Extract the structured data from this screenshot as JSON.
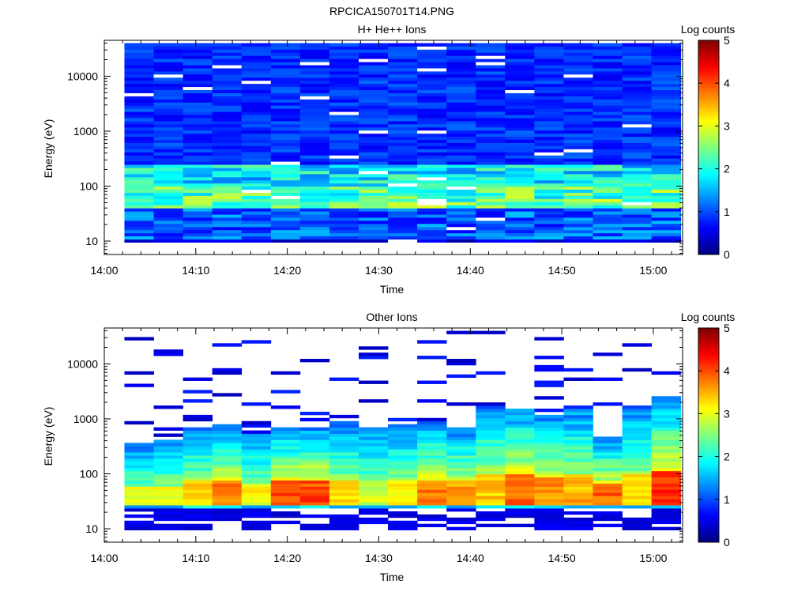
{
  "figure_title": "RPCICA150701T14.PNG",
  "colormap": [
    "#00007f",
    "#0000ff",
    "#007fff",
    "#00ffff",
    "#7fff7f",
    "#ffff00",
    "#ff7f00",
    "#ff0000",
    "#7f0000"
  ],
  "chart_data": [
    {
      "type": "heatmap",
      "title": "H+ He++ Ions",
      "xlabel": "Time",
      "ylabel": "Energy (eV)",
      "x_ticks": [
        "14:00",
        "14:10",
        "14:20",
        "14:30",
        "14:40",
        "14:50",
        "15:00"
      ],
      "x_tick_minutes": [
        0,
        10,
        20,
        30,
        40,
        50,
        60
      ],
      "xlim_minutes": [
        0,
        63.2
      ],
      "y_scale": "log",
      "ylim": [
        5.7,
        45000
      ],
      "y_ticks": [
        10,
        100,
        1000,
        10000
      ],
      "colorbar": {
        "label": "Log counts",
        "ticks": [
          0,
          1,
          2,
          3,
          4,
          5
        ],
        "range": [
          0,
          5
        ]
      },
      "time_bins_minutes": [
        2.2,
        5.4,
        8.6,
        11.8,
        15.0,
        18.2,
        21.4,
        24.6,
        27.8,
        31.0,
        34.2,
        37.4,
        40.6,
        43.8,
        47.0,
        50.2,
        53.4,
        56.6,
        59.8,
        63.0
      ],
      "energy_range_ev": [
        9.5,
        40000
      ],
      "energy_channels": 64,
      "profile": "ion_background"
    },
    {
      "type": "heatmap",
      "title": "Other Ions",
      "xlabel": "Time",
      "ylabel": "Energy (eV)",
      "x_ticks": [
        "14:00",
        "14:10",
        "14:20",
        "14:30",
        "14:40",
        "14:50",
        "15:00"
      ],
      "x_tick_minutes": [
        0,
        10,
        20,
        30,
        40,
        50,
        60
      ],
      "xlim_minutes": [
        0,
        63.2
      ],
      "y_scale": "log",
      "ylim": [
        5.7,
        45000
      ],
      "y_ticks": [
        10,
        100,
        1000,
        10000
      ],
      "colorbar": {
        "label": "Log counts",
        "ticks": [
          0,
          1,
          2,
          3,
          4,
          5
        ],
        "range": [
          0,
          5
        ]
      },
      "time_bins_minutes": [
        2.2,
        5.4,
        8.6,
        11.8,
        15.0,
        18.2,
        21.4,
        24.6,
        27.8,
        31.0,
        34.2,
        37.4,
        40.6,
        43.8,
        47.0,
        50.2,
        53.4,
        56.6,
        59.8,
        63.0
      ],
      "energy_range_ev": [
        9.5,
        40000
      ],
      "energy_channels": 64,
      "profile": "heavy_ions"
    }
  ]
}
